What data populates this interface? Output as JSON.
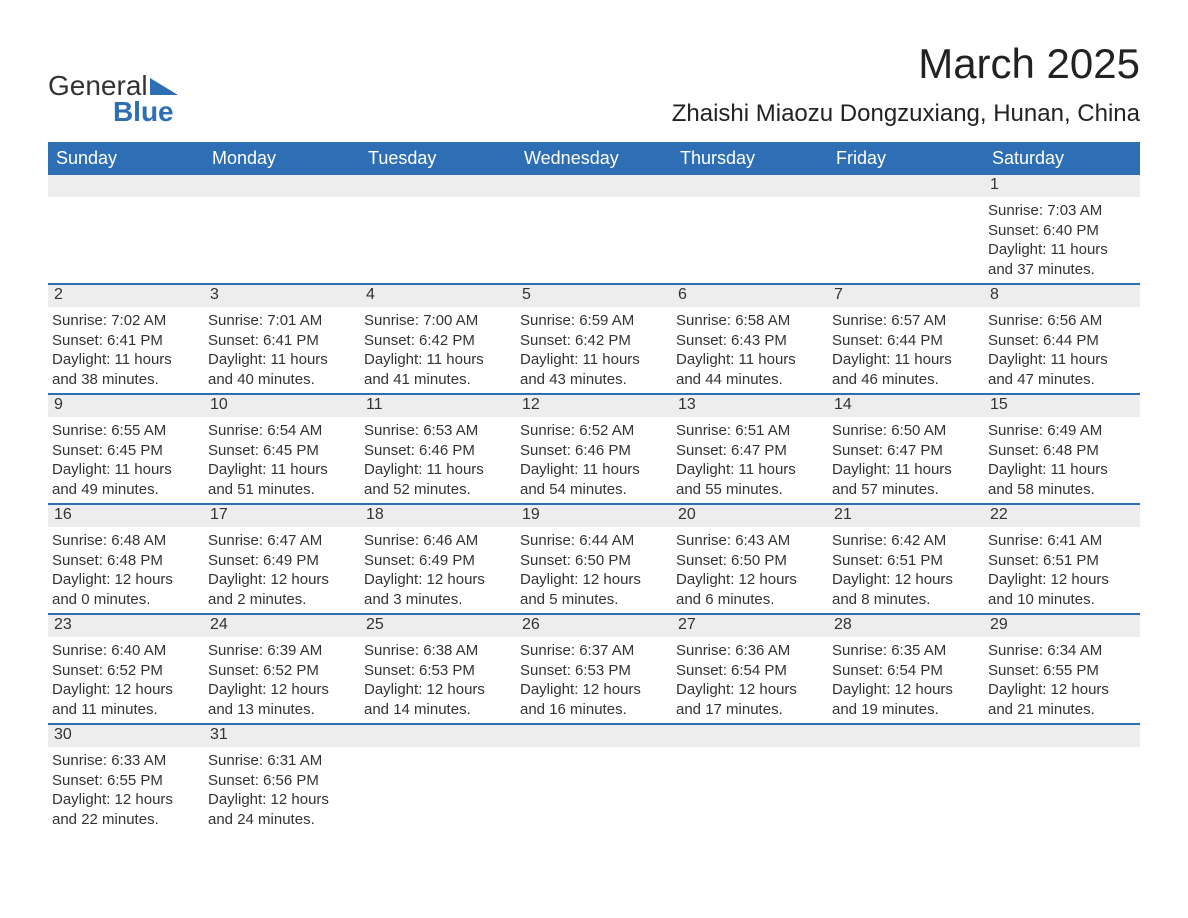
{
  "logo": {
    "general": "General",
    "blue": "Blue",
    "color": "#2d6eb5"
  },
  "title": "March 2025",
  "location": "Zhaishi Miaozu Dongzuxiang, Hunan, China",
  "weekdays": [
    "Sunday",
    "Monday",
    "Tuesday",
    "Wednesday",
    "Thursday",
    "Friday",
    "Saturday"
  ],
  "colors": {
    "header_bg": "#2d6eb5",
    "header_text": "#ffffff",
    "daynum_bg": "#ededed",
    "rule": "#2d6eb5",
    "text": "#333333"
  },
  "fonts": {
    "title_pt": 42,
    "location_pt": 24,
    "weekday_pt": 18,
    "body_pt": 15
  },
  "labels": {
    "sunrise": "Sunrise:",
    "sunset": "Sunset:",
    "daylight": "Daylight:"
  },
  "weeks": [
    [
      {
        "empty": true
      },
      {
        "empty": true
      },
      {
        "empty": true
      },
      {
        "empty": true
      },
      {
        "empty": true
      },
      {
        "empty": true
      },
      {
        "n": "1",
        "sunrise": "7:03 AM",
        "sunset": "6:40 PM",
        "daylight": "11 hours and 37 minutes."
      }
    ],
    [
      {
        "n": "2",
        "sunrise": "7:02 AM",
        "sunset": "6:41 PM",
        "daylight": "11 hours and 38 minutes."
      },
      {
        "n": "3",
        "sunrise": "7:01 AM",
        "sunset": "6:41 PM",
        "daylight": "11 hours and 40 minutes."
      },
      {
        "n": "4",
        "sunrise": "7:00 AM",
        "sunset": "6:42 PM",
        "daylight": "11 hours and 41 minutes."
      },
      {
        "n": "5",
        "sunrise": "6:59 AM",
        "sunset": "6:42 PM",
        "daylight": "11 hours and 43 minutes."
      },
      {
        "n": "6",
        "sunrise": "6:58 AM",
        "sunset": "6:43 PM",
        "daylight": "11 hours and 44 minutes."
      },
      {
        "n": "7",
        "sunrise": "6:57 AM",
        "sunset": "6:44 PM",
        "daylight": "11 hours and 46 minutes."
      },
      {
        "n": "8",
        "sunrise": "6:56 AM",
        "sunset": "6:44 PM",
        "daylight": "11 hours and 47 minutes."
      }
    ],
    [
      {
        "n": "9",
        "sunrise": "6:55 AM",
        "sunset": "6:45 PM",
        "daylight": "11 hours and 49 minutes."
      },
      {
        "n": "10",
        "sunrise": "6:54 AM",
        "sunset": "6:45 PM",
        "daylight": "11 hours and 51 minutes."
      },
      {
        "n": "11",
        "sunrise": "6:53 AM",
        "sunset": "6:46 PM",
        "daylight": "11 hours and 52 minutes."
      },
      {
        "n": "12",
        "sunrise": "6:52 AM",
        "sunset": "6:46 PM",
        "daylight": "11 hours and 54 minutes."
      },
      {
        "n": "13",
        "sunrise": "6:51 AM",
        "sunset": "6:47 PM",
        "daylight": "11 hours and 55 minutes."
      },
      {
        "n": "14",
        "sunrise": "6:50 AM",
        "sunset": "6:47 PM",
        "daylight": "11 hours and 57 minutes."
      },
      {
        "n": "15",
        "sunrise": "6:49 AM",
        "sunset": "6:48 PM",
        "daylight": "11 hours and 58 minutes."
      }
    ],
    [
      {
        "n": "16",
        "sunrise": "6:48 AM",
        "sunset": "6:48 PM",
        "daylight": "12 hours and 0 minutes."
      },
      {
        "n": "17",
        "sunrise": "6:47 AM",
        "sunset": "6:49 PM",
        "daylight": "12 hours and 2 minutes."
      },
      {
        "n": "18",
        "sunrise": "6:46 AM",
        "sunset": "6:49 PM",
        "daylight": "12 hours and 3 minutes."
      },
      {
        "n": "19",
        "sunrise": "6:44 AM",
        "sunset": "6:50 PM",
        "daylight": "12 hours and 5 minutes."
      },
      {
        "n": "20",
        "sunrise": "6:43 AM",
        "sunset": "6:50 PM",
        "daylight": "12 hours and 6 minutes."
      },
      {
        "n": "21",
        "sunrise": "6:42 AM",
        "sunset": "6:51 PM",
        "daylight": "12 hours and 8 minutes."
      },
      {
        "n": "22",
        "sunrise": "6:41 AM",
        "sunset": "6:51 PM",
        "daylight": "12 hours and 10 minutes."
      }
    ],
    [
      {
        "n": "23",
        "sunrise": "6:40 AM",
        "sunset": "6:52 PM",
        "daylight": "12 hours and 11 minutes."
      },
      {
        "n": "24",
        "sunrise": "6:39 AM",
        "sunset": "6:52 PM",
        "daylight": "12 hours and 13 minutes."
      },
      {
        "n": "25",
        "sunrise": "6:38 AM",
        "sunset": "6:53 PM",
        "daylight": "12 hours and 14 minutes."
      },
      {
        "n": "26",
        "sunrise": "6:37 AM",
        "sunset": "6:53 PM",
        "daylight": "12 hours and 16 minutes."
      },
      {
        "n": "27",
        "sunrise": "6:36 AM",
        "sunset": "6:54 PM",
        "daylight": "12 hours and 17 minutes."
      },
      {
        "n": "28",
        "sunrise": "6:35 AM",
        "sunset": "6:54 PM",
        "daylight": "12 hours and 19 minutes."
      },
      {
        "n": "29",
        "sunrise": "6:34 AM",
        "sunset": "6:55 PM",
        "daylight": "12 hours and 21 minutes."
      }
    ],
    [
      {
        "n": "30",
        "sunrise": "6:33 AM",
        "sunset": "6:55 PM",
        "daylight": "12 hours and 22 minutes."
      },
      {
        "n": "31",
        "sunrise": "6:31 AM",
        "sunset": "6:56 PM",
        "daylight": "12 hours and 24 minutes."
      },
      {
        "empty": true
      },
      {
        "empty": true
      },
      {
        "empty": true
      },
      {
        "empty": true
      },
      {
        "empty": true
      }
    ]
  ]
}
